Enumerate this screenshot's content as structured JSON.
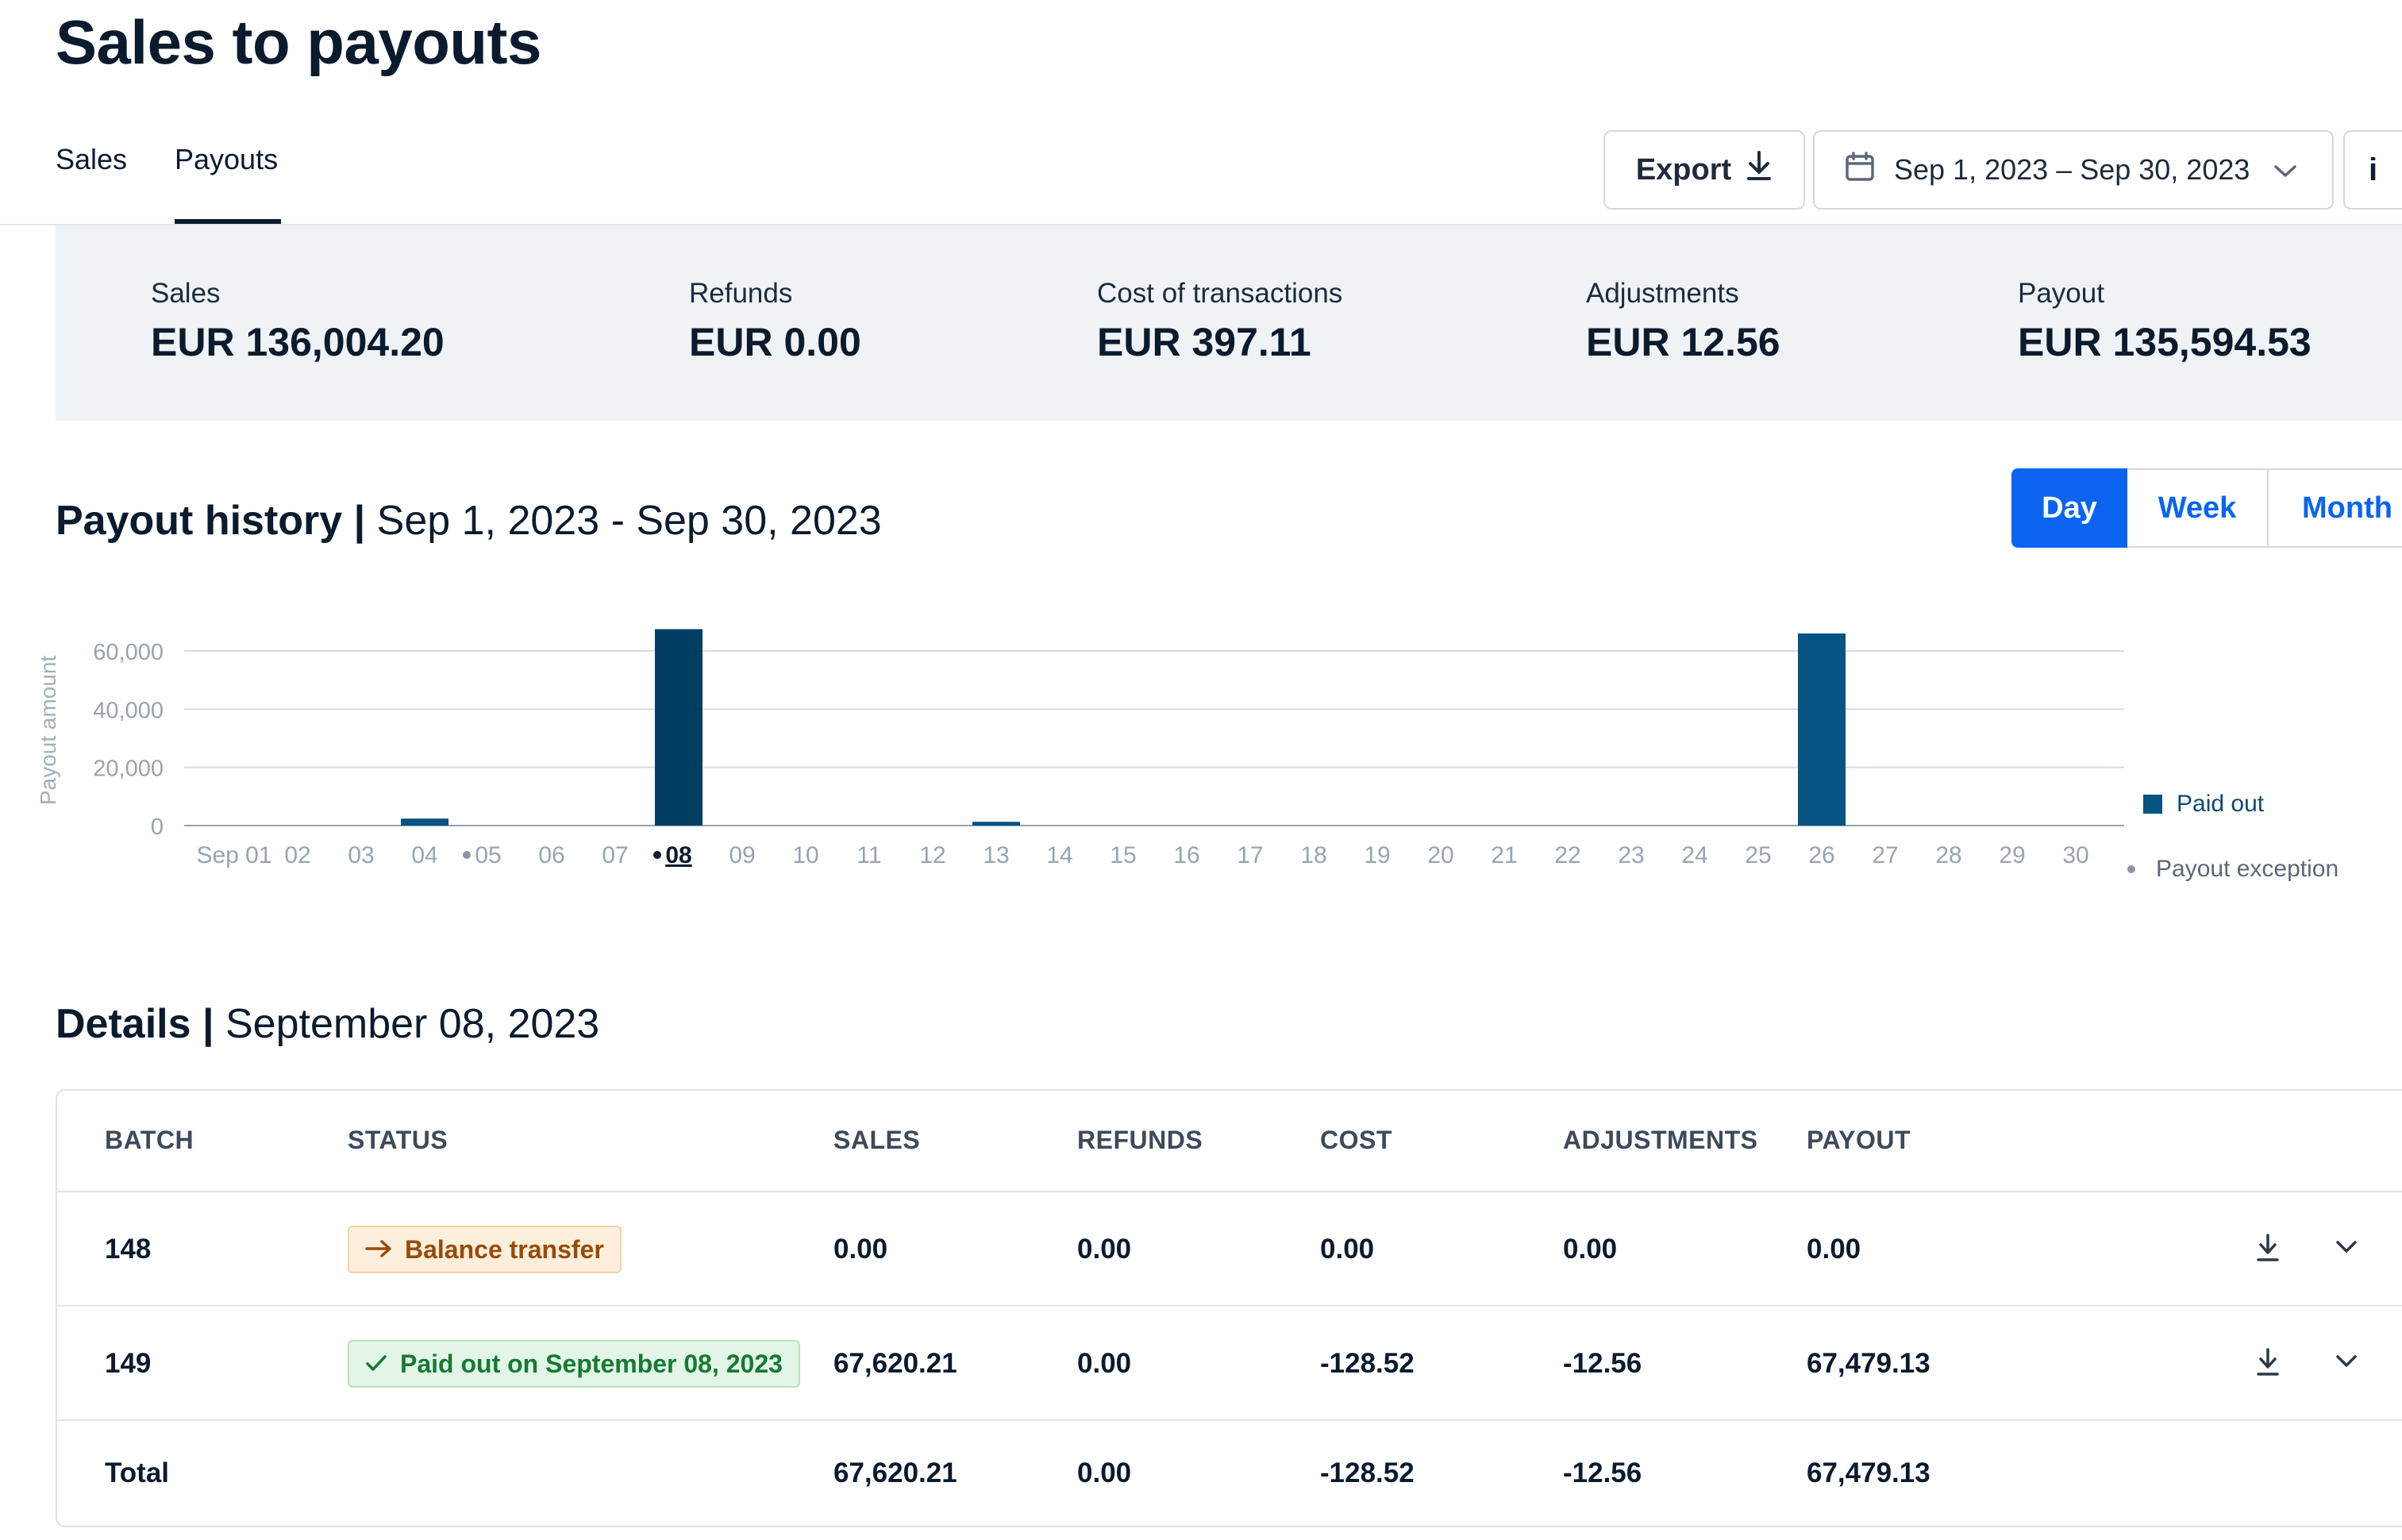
{
  "page": {
    "title": "Sales to payouts"
  },
  "tabs": [
    {
      "label": "Sales",
      "active": false
    },
    {
      "label": "Payouts",
      "active": true
    }
  ],
  "toolbar": {
    "export_label": "Export",
    "date_range": "Sep 1, 2023 – Sep 30, 2023",
    "info_glyph": "i"
  },
  "summary": [
    {
      "label": "Sales",
      "value": "EUR 136,004.20"
    },
    {
      "label": "Refunds",
      "value": "EUR 0.00"
    },
    {
      "label": "Cost of transactions",
      "value": "EUR 397.11"
    },
    {
      "label": "Adjustments",
      "value": "EUR 12.56"
    },
    {
      "label": "Payout",
      "value": "EUR 135,594.53"
    }
  ],
  "history": {
    "title": "Payout history",
    "separator": "|",
    "range": "Sep 1, 2023 - Sep 30, 2023",
    "views": [
      "Day",
      "Week",
      "Month"
    ],
    "active_view": "Day"
  },
  "chart_data": {
    "type": "bar",
    "ylabel": "Payout amount",
    "xlabel": "",
    "ylim": [
      0,
      60000
    ],
    "yticks": [
      "0",
      "20,000",
      "40,000",
      "60,000"
    ],
    "categories": [
      "Sep 01",
      "02",
      "03",
      "04",
      "05",
      "06",
      "07",
      "08",
      "09",
      "10",
      "11",
      "12",
      "13",
      "14",
      "15",
      "16",
      "17",
      "18",
      "19",
      "20",
      "21",
      "22",
      "23",
      "24",
      "25",
      "26",
      "27",
      "28",
      "29",
      "30"
    ],
    "series": [
      {
        "name": "Paid out",
        "values": [
          0,
          0,
          0,
          2400,
          0,
          0,
          0,
          67479.13,
          0,
          0,
          0,
          0,
          1300,
          0,
          0,
          0,
          0,
          0,
          0,
          0,
          0,
          0,
          0,
          0,
          0,
          66000,
          0,
          0,
          0,
          0
        ]
      }
    ],
    "exception_days": [
      "05",
      "08"
    ],
    "selected_day": "08",
    "legend": [
      {
        "label": "Paid out",
        "marker": "square"
      },
      {
        "label": "Payout exception",
        "marker": "dot"
      }
    ],
    "legend_position": "right",
    "grid": true
  },
  "colors": {
    "bar": "#003f63",
    "bar_alt": "#055483",
    "accent": "#0a64f0",
    "summary_bg": "#f0f3f6",
    "warning_bg": "#fdefdc",
    "success_bg": "#e2f5e6"
  },
  "details": {
    "title": "Details",
    "separator": "|",
    "date": "September 08, 2023",
    "columns": [
      "BATCH",
      "STATUS",
      "SALES",
      "REFUNDS",
      "COST",
      "ADJUSTMENTS",
      "PAYOUT"
    ],
    "rows": [
      {
        "batch": "148",
        "status": "Balance transfer",
        "status_icon": "arrow-right-icon",
        "sales": "0.00",
        "refunds": "0.00",
        "cost": "0.00",
        "adjustments": "0.00",
        "payout": "0.00"
      },
      {
        "batch": "149",
        "status": "Paid out on September 08, 2023",
        "status_icon": "check-icon",
        "sales": "67,620.21",
        "refunds": "0.00",
        "cost": "-128.52",
        "adjustments": "-12.56",
        "payout": "67,479.13"
      }
    ],
    "total": {
      "label": "Total",
      "sales": "67,620.21",
      "refunds": "0.00",
      "cost": "-128.52",
      "adjustments": "-12.56",
      "payout": "67,479.13"
    }
  }
}
